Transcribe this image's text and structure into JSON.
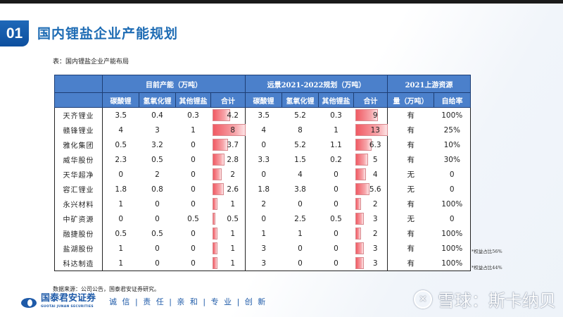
{
  "section": {
    "number": "01",
    "title": "国内锂盐企业产能规划"
  },
  "caption": "表：国内锂盐企业产能布局",
  "table": {
    "group_headers": [
      "目前产能（万吨）",
      "远景2021-2022规划（万吨）",
      "2021上游资源"
    ],
    "sub_headers": [
      "碳酸锂",
      "氢氧化锂",
      "其他锂盐",
      "合计",
      "碳酸锂",
      "氢氧化锂",
      "其他锂盐",
      "合计",
      "量（万吨）",
      "自给率"
    ],
    "rows": [
      {
        "name": "天齐锂业",
        "cur": [
          "3.5",
          "0.4",
          "0.3",
          "4.2"
        ],
        "plan": [
          "3.5",
          "5.2",
          "0.3",
          "9"
        ],
        "res": "有",
        "rate": "100%"
      },
      {
        "name": "赣锋锂业",
        "cur": [
          "4",
          "3",
          "1",
          "8"
        ],
        "plan": [
          "4",
          "8",
          "1",
          "13"
        ],
        "res": "有",
        "rate": "25%"
      },
      {
        "name": "雅化集团",
        "cur": [
          "0.5",
          "3.2",
          "0",
          "3.7"
        ],
        "plan": [
          "0",
          "5.2",
          "1.1",
          "6.3"
        ],
        "res": "有",
        "rate": "10%"
      },
      {
        "name": "威华股份",
        "cur": [
          "2.3",
          "0.5",
          "0",
          "2.8"
        ],
        "plan": [
          "3.3",
          "1.5",
          "0.2",
          "5"
        ],
        "res": "有",
        "rate": "30%"
      },
      {
        "name": "天华超净",
        "cur": [
          "0",
          "2",
          "0",
          "2"
        ],
        "plan": [
          "0",
          "4",
          "0",
          "4"
        ],
        "res": "无",
        "rate": "0"
      },
      {
        "name": "容汇锂业",
        "cur": [
          "1.8",
          "0.8",
          "0",
          "2.6"
        ],
        "plan": [
          "1.8",
          "3.8",
          "0",
          "5.6"
        ],
        "res": "无",
        "rate": "0"
      },
      {
        "name": "永兴材料",
        "cur": [
          "1",
          "0",
          "0",
          "1"
        ],
        "plan": [
          "2",
          "0",
          "0",
          "2"
        ],
        "res": "有",
        "rate": "100%"
      },
      {
        "name": "中矿资源",
        "cur": [
          "0",
          "0",
          "0.5",
          "0.5"
        ],
        "plan": [
          "0",
          "2.5",
          "0.5",
          "3"
        ],
        "res": "无",
        "rate": "0"
      },
      {
        "name": "融捷股份",
        "cur": [
          "0.5",
          "0.5",
          "0",
          "1"
        ],
        "plan": [
          "1",
          "1",
          "0",
          "2"
        ],
        "res": "有",
        "rate": "100%"
      },
      {
        "name": "盐湖股份",
        "cur": [
          "1",
          "0",
          "0",
          "1"
        ],
        "plan": [
          "3",
          "0",
          "0",
          "3"
        ],
        "res": "有",
        "rate": "100%"
      },
      {
        "name": "科达制造",
        "cur": [
          "1",
          "0",
          "0",
          "1"
        ],
        "plan": [
          "3",
          "0",
          "0",
          "3"
        ],
        "res": "有",
        "rate": "100%"
      }
    ],
    "notes": [
      "*权益占比56%",
      "*权益占比44%"
    ]
  },
  "source": "数据来源：公司公告，国泰君安证券研究。",
  "footer": {
    "logo_cn": "国泰君安证券",
    "logo_en": "GUOTAI JUNAN SECURITIES",
    "slogan": "诚 信 | 责 任 | 亲 和 | 专 业 | 创 新"
  },
  "watermark": {
    "icon": "snowball-icon",
    "text": "雪球：斯卡纳贝"
  },
  "colors": {
    "header_bg": "#4b80cb",
    "title": "#1e6cb4",
    "bar": "#f05a63"
  }
}
